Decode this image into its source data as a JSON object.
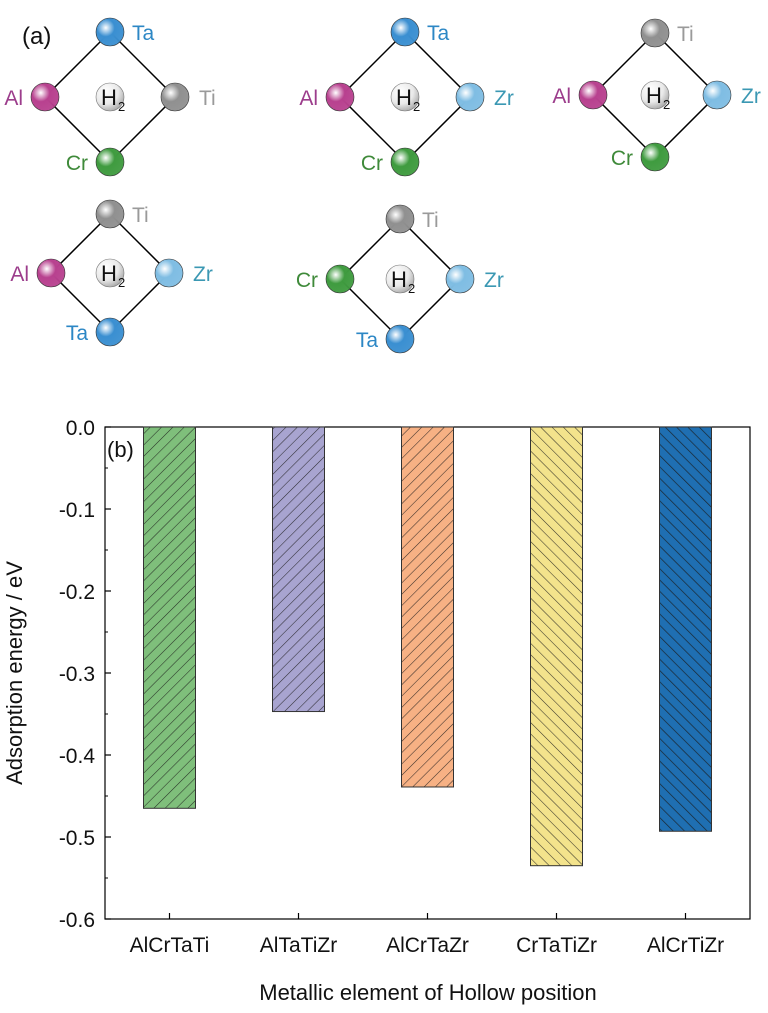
{
  "panel_a": {
    "label": "(a)",
    "h2_label": "H",
    "h2_sub": "2",
    "colors": {
      "Ta": "#3a8fd1",
      "Zr": "#7fbde3",
      "Al": "#b8418f",
      "Ti": "#909090",
      "Cr": "#3f9b3f"
    },
    "label_colors": {
      "Ta": "#2c87c5",
      "Zr": "#3b98b3",
      "Al": "#9c3d8c",
      "Ti": "#9a9a9a",
      "Cr": "#3f8a3a"
    },
    "motifs": [
      {
        "top": "Ta",
        "left": "Al",
        "right": "Ti",
        "bottom": "Cr"
      },
      {
        "top": "Ta",
        "left": "Al",
        "right": "Zr",
        "bottom": "Cr"
      },
      {
        "top": "Ti",
        "left": "Al",
        "right": "Zr",
        "bottom": "Cr"
      },
      {
        "top": "Ti",
        "left": "Al",
        "right": "Zr",
        "bottom": "Ta"
      },
      {
        "top": "Ti",
        "left": "Cr",
        "right": "Zr",
        "bottom": "Ta"
      }
    ]
  },
  "chart_data": {
    "type": "bar",
    "panel_label": "(b)",
    "categories": [
      "AlCrTaTi",
      "AlTaTiZr",
      "AlCrTaZr",
      "CrTaTiZr",
      "AlCrTiZr"
    ],
    "values": [
      -0.465,
      -0.347,
      -0.439,
      -0.535,
      -0.493
    ],
    "colors": [
      "#7fbf7b",
      "#a8a4d0",
      "#f7b184",
      "#f3e38c",
      "#1f6fb2"
    ],
    "xlabel": "Metallic element of Hollow position",
    "ylabel": "Adsorption energy / eV",
    "ylim": [
      -0.6,
      0.0
    ],
    "yticks": [
      "0.0",
      "-0.1",
      "-0.2",
      "-0.3",
      "-0.4",
      "-0.5",
      "-0.6"
    ],
    "hatched": true,
    "grid": false
  }
}
